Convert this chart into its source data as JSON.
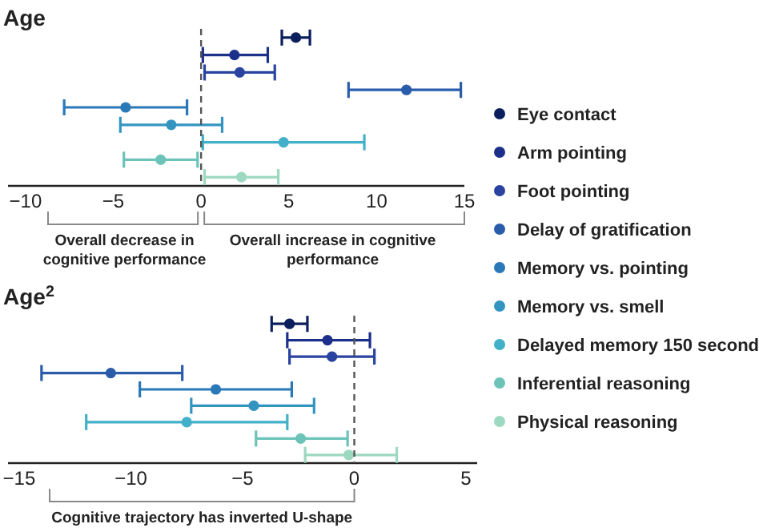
{
  "chart_data": [
    {
      "type": "scatter",
      "title": "Age",
      "orientation": "horizontal",
      "categories": [
        null,
        null,
        null,
        null,
        null,
        null,
        null,
        null,
        null
      ],
      "xlim": [
        -11,
        15
      ],
      "xticks": [
        -10,
        -5,
        0,
        5,
        10,
        15
      ],
      "tick_labels": "x",
      "legend": "right",
      "marker": "circle",
      "ref_lines": [
        {
          "axis": "x",
          "value": 0,
          "line_style": "dashed"
        }
      ],
      "annotations": [
        "Overall decrease in cognitive performance",
        "Overall increase in cognitive performance"
      ],
      "series": [
        {
          "name": "Eye contact",
          "color": "#0b1f5c",
          "values": [
            5.4,
            null,
            null,
            null,
            null,
            null,
            null,
            null,
            null
          ],
          "errors": [
            [
              4.6,
              6.2
            ],
            null,
            null,
            null,
            null,
            null,
            null,
            null,
            null
          ]
        },
        {
          "name": "Arm pointing",
          "color": "#1c2f8a",
          "values": [
            null,
            1.9,
            null,
            null,
            null,
            null,
            null,
            null,
            null
          ],
          "errors": [
            null,
            [
              0.1,
              3.8
            ],
            null,
            null,
            null,
            null,
            null,
            null,
            null
          ]
        },
        {
          "name": "Foot pointing",
          "color": "#2a43a0",
          "values": [
            null,
            null,
            2.2,
            null,
            null,
            null,
            null,
            null,
            null
          ],
          "errors": [
            null,
            null,
            [
              0.2,
              4.2
            ],
            null,
            null,
            null,
            null,
            null,
            null
          ]
        },
        {
          "name": "Delay of gratification",
          "color": "#2a5caa",
          "values": [
            null,
            null,
            null,
            11.7,
            null,
            null,
            null,
            null,
            null
          ],
          "errors": [
            null,
            null,
            null,
            [
              8.4,
              14.8
            ],
            null,
            null,
            null,
            null,
            null
          ]
        },
        {
          "name": "Memory vs. pointing",
          "color": "#2b78b8",
          "values": [
            null,
            null,
            null,
            null,
            -4.3,
            null,
            null,
            null,
            null
          ],
          "errors": [
            null,
            null,
            null,
            null,
            [
              -7.8,
              -0.8
            ],
            null,
            null,
            null,
            null
          ]
        },
        {
          "name": "Memory vs. smell",
          "color": "#3494c0",
          "values": [
            null,
            null,
            null,
            null,
            null,
            -1.7,
            null,
            null,
            null
          ],
          "errors": [
            null,
            null,
            null,
            null,
            null,
            [
              -4.6,
              1.2
            ],
            null,
            null,
            null
          ]
        },
        {
          "name": "Delayed memory 150 second",
          "color": "#42b0c8",
          "values": [
            null,
            null,
            null,
            null,
            null,
            null,
            4.7,
            null,
            null
          ],
          "errors": [
            null,
            null,
            null,
            null,
            null,
            null,
            [
              0.1,
              9.3
            ],
            null,
            null
          ]
        },
        {
          "name": "Inferential reasoning",
          "color": "#6cc3b8",
          "values": [
            null,
            null,
            null,
            null,
            null,
            null,
            null,
            -2.3,
            null
          ],
          "errors": [
            null,
            null,
            null,
            null,
            null,
            null,
            null,
            [
              -4.4,
              -0.2
            ],
            null
          ]
        },
        {
          "name": "Physical reasoning",
          "color": "#9dd8c0",
          "values": [
            null,
            null,
            null,
            null,
            null,
            null,
            null,
            null,
            2.3
          ],
          "errors": [
            null,
            null,
            null,
            null,
            null,
            null,
            null,
            null,
            [
              0.2,
              4.4
            ]
          ]
        }
      ]
    },
    {
      "type": "scatter",
      "title": "Age$^{2}$",
      "orientation": "horizontal",
      "categories": [
        null,
        null,
        null,
        null,
        null,
        null,
        null,
        null,
        null
      ],
      "xlim": [
        -15.5,
        5.5
      ],
      "xticks": [
        -15,
        -10,
        -5,
        0,
        5
      ],
      "tick_labels": "x",
      "marker": "circle",
      "ref_lines": [
        {
          "axis": "x",
          "value": 0,
          "line_style": "dashed"
        }
      ],
      "annotations": [
        "Cognitive trajectory has inverted U-shape"
      ],
      "series": [
        {
          "color": "#0b1f5c",
          "values": [
            -2.9,
            null,
            null,
            null,
            null,
            null,
            null,
            null,
            null
          ],
          "errors": [
            [
              -3.7,
              -2.1
            ],
            null,
            null,
            null,
            null,
            null,
            null,
            null,
            null
          ]
        },
        {
          "color": "#1c2f8a",
          "values": [
            null,
            -1.2,
            null,
            null,
            null,
            null,
            null,
            null,
            null
          ],
          "errors": [
            null,
            [
              -3.0,
              0.7
            ],
            null,
            null,
            null,
            null,
            null,
            null,
            null
          ]
        },
        {
          "color": "#2a43a0",
          "values": [
            null,
            null,
            -1.0,
            null,
            null,
            null,
            null,
            null,
            null
          ],
          "errors": [
            null,
            null,
            [
              -2.9,
              0.9
            ],
            null,
            null,
            null,
            null,
            null,
            null
          ]
        },
        {
          "color": "#2a5caa",
          "values": [
            null,
            null,
            null,
            -10.9,
            null,
            null,
            null,
            null,
            null
          ],
          "errors": [
            null,
            null,
            null,
            [
              -14.0,
              -7.7
            ],
            null,
            null,
            null,
            null,
            null
          ]
        },
        {
          "color": "#2b78b8",
          "values": [
            null,
            null,
            null,
            null,
            -6.2,
            null,
            null,
            null,
            null
          ],
          "errors": [
            null,
            null,
            null,
            null,
            [
              -9.6,
              -2.8
            ],
            null,
            null,
            null,
            null
          ]
        },
        {
          "color": "#3494c0",
          "values": [
            null,
            null,
            null,
            null,
            null,
            -4.5,
            null,
            null,
            null
          ],
          "errors": [
            null,
            null,
            null,
            null,
            null,
            [
              -7.3,
              -1.8
            ],
            null,
            null,
            null
          ]
        },
        {
          "color": "#42b0c8",
          "values": [
            null,
            null,
            null,
            null,
            null,
            null,
            -7.5,
            null,
            null
          ],
          "errors": [
            null,
            null,
            null,
            null,
            null,
            null,
            [
              -12.0,
              -3.0
            ],
            null,
            null
          ]
        },
        {
          "color": "#6cc3b8",
          "values": [
            null,
            null,
            null,
            null,
            null,
            null,
            null,
            -2.4,
            null
          ],
          "errors": [
            null,
            null,
            null,
            null,
            null,
            null,
            null,
            [
              -4.4,
              -0.3
            ],
            null
          ]
        },
        {
          "color": "#9dd8c0",
          "values": [
            null,
            null,
            null,
            null,
            null,
            null,
            null,
            null,
            -0.25
          ],
          "errors": [
            null,
            null,
            null,
            null,
            null,
            null,
            null,
            null,
            [
              -2.2,
              1.9
            ]
          ]
        }
      ]
    }
  ]
}
